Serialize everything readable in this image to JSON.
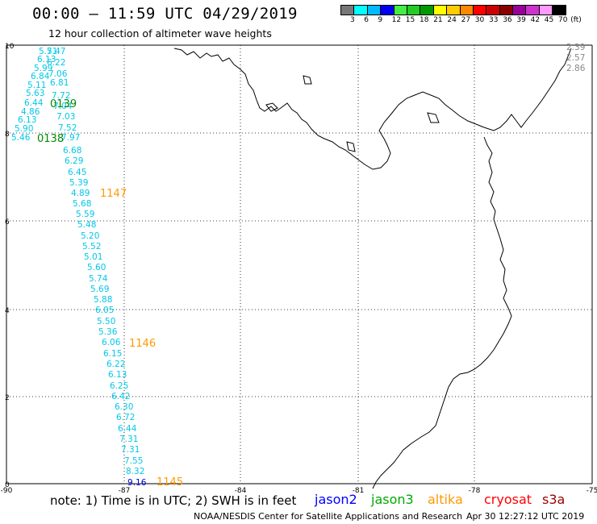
{
  "header": {
    "title": "00:00 – 11:59 UTC 04/29/2019",
    "subtitle": "12 hour collection of altimeter wave heights"
  },
  "legend": {
    "unit": "(ft)",
    "ticks": [
      "3",
      "6",
      "9",
      "12",
      "15",
      "18",
      "21",
      "24",
      "27",
      "30",
      "33",
      "36",
      "39",
      "42",
      "45",
      "70"
    ],
    "colors": [
      "#777777",
      "#00ffff",
      "#00bbff",
      "#0000ee",
      "#44ee44",
      "#22cc22",
      "#009900",
      "#ffff00",
      "#ffcc00",
      "#ff8800",
      "#ff0000",
      "#cc0000",
      "#880000",
      "#990099",
      "#cc33cc",
      "#ff99ff",
      "#000000"
    ]
  },
  "axes": {
    "x_ticks": [
      "-90",
      "-87",
      "-84",
      "-81",
      "-78",
      "-75"
    ],
    "y_ticks": [
      "10",
      "8",
      "6",
      "4",
      "2",
      "0"
    ]
  },
  "swh_values": {
    "cyan": [
      "5.51",
      "7.47",
      "6.13",
      "6.22",
      "5.99",
      "7.06",
      "6.84",
      "6.81",
      "5.11",
      "5.63",
      "7.72",
      "6.44",
      "7.04",
      "4.86",
      "7.03",
      "6.13",
      "5.90",
      "7.52",
      "5.46",
      "7.97",
      "6.68",
      "6.29",
      "6.45",
      "5.39",
      "4.89",
      "5.68",
      "5.59",
      "5.48",
      "5.20",
      "5.52",
      "5.01",
      "5.60",
      "5.74",
      "5.69",
      "5.88",
      "6.05",
      "5.50",
      "5.36",
      "6.06",
      "6.15",
      "6.22",
      "6.13",
      "6.25",
      "6.42",
      "6.30",
      "6.72",
      "6.44",
      "7.31",
      "7.31",
      "7.55",
      "8.32"
    ],
    "blue": [
      "9.16"
    ],
    "gray": [
      "2.39",
      "2.57",
      "2.86"
    ]
  },
  "time_labels": {
    "jason3": [
      "0139",
      "0138"
    ],
    "altika": [
      "1147",
      "1146",
      "1145"
    ]
  },
  "note": "note:  1) Time is in UTC;  2) SWH is in feet",
  "satellites": [
    {
      "name": "jason2",
      "color": "#0000ff"
    },
    {
      "name": "jason3",
      "color": "#00aa00"
    },
    {
      "name": "altika",
      "color": "#ff9900"
    },
    {
      "name": "cryosat",
      "color": "#ff0000"
    },
    {
      "name": "s3a",
      "color": "#990000"
    }
  ],
  "credit": "NOAA/NESDIS Center for Satellite Applications and Research",
  "credit_date": "Apr 30 12:27:12 UTC 2019"
}
